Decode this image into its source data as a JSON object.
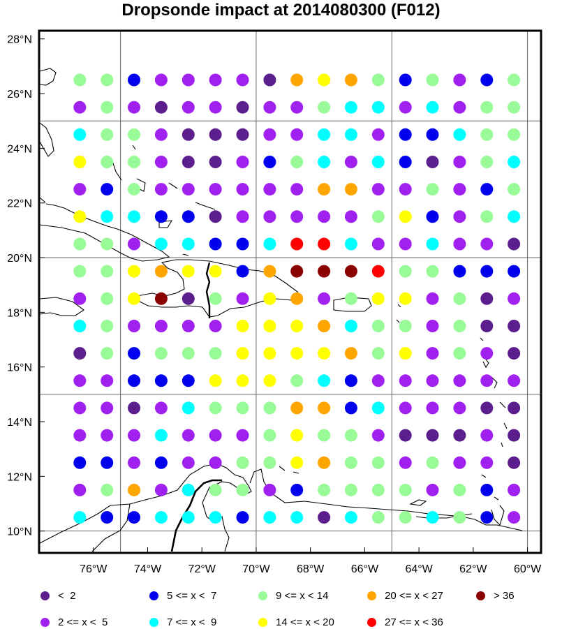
{
  "title": "Dropsonde impact at 2014080300 (F012)",
  "colors": {
    "c0": "#5B1E8C",
    "c1": "#A020F0",
    "c2": "#0000EE",
    "c3": "#00FFFF",
    "c4": "#98FB98",
    "c5": "#FFFF00",
    "c6": "#FFA500",
    "c7": "#FF0000",
    "c8": "#8B0000"
  },
  "legend": [
    {
      "cls": "c0",
      "label": "<  2"
    },
    {
      "cls": "c2",
      "label": "5 <= x <  7"
    },
    {
      "cls": "c4",
      "label": "9 <= x < 14"
    },
    {
      "cls": "c6",
      "label": "20 <= x < 27"
    },
    {
      "cls": "c8",
      "label": "> 36"
    },
    {
      "cls": "c1",
      "label": "2 <= x <  5"
    },
    {
      "cls": "c3",
      "label": "7 <= x <  9"
    },
    {
      "cls": "c5",
      "label": "14 <= x < 20"
    },
    {
      "cls": "c7",
      "label": "27 <= x < 36"
    }
  ],
  "x_ticks": [
    "76°W",
    "74°W",
    "72°W",
    "70°W",
    "68°W",
    "66°W",
    "64°W",
    "62°W",
    "60°W"
  ],
  "y_ticks": [
    "28°N",
    "26°N",
    "24°N",
    "22°N",
    "20°N",
    "18°N",
    "16°N",
    "14°N",
    "12°N",
    "10°N"
  ],
  "chart_data": {
    "type": "heatmap",
    "title": "Dropsonde impact at 2014080300 (F012)",
    "x_lon": [
      -76.5,
      -75.5,
      -74.5,
      -73.5,
      -72.5,
      -71.5,
      -70.5,
      -69.5,
      -68.5,
      -67.5,
      -66.5,
      -65.5,
      -64.5,
      -63.5,
      -62.5,
      -61.5,
      -60.5
    ],
    "y_lat": [
      26.5,
      25.5,
      24.5,
      23.5,
      22.5,
      21.5,
      20.5,
      19.5,
      18.5,
      17.5,
      16.5,
      15.5,
      14.5,
      13.5,
      12.5,
      11.5,
      10.5
    ],
    "categories": [
      "< 2",
      "2 <= x < 5",
      "5 <= x < 7",
      "7 <= x < 9",
      "9 <= x < 14",
      "14 <= x < 20",
      "20 <= x < 27",
      "27 <= x < 36",
      "> 36"
    ],
    "grid_category_index": [
      "44211110656424124",
      "14101101143313144",
      "34410001133122344",
      "54410012431320143",
      "12411111166114124",
      "53322011111452143",
      "44133223773113110",
      "44565526888744222",
      "14580415614551401",
      "34111155563441400",
      "04244455556451410",
      "11222555432111111",
      "11013444662311100",
      "11131114544100010",
      "22121144564414110",
      "14613441244441421",
      "32233323303443421"
    ],
    "xlim": [
      -78,
      -59.5
    ],
    "ylim": [
      9.2,
      28.3
    ]
  }
}
